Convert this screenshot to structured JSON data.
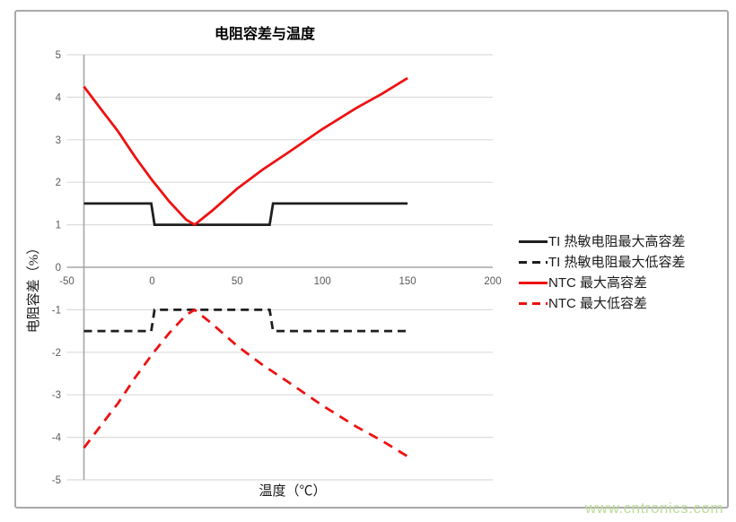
{
  "watermark": "www.cntronics.com",
  "colors": {
    "grid": "#dcdcdc",
    "axis": "#a6a6a6",
    "tick_label": "#595959",
    "series_black": "#1f1f1f",
    "series_red": "#ee1111",
    "watermark": "#bfdb9b",
    "frame_border": "#a9a9a9"
  },
  "chart_data": {
    "type": "line",
    "title": "电阻容差与温度",
    "xlabel": "温度（℃）",
    "ylabel": "电阻容差（%）",
    "xlim": [
      -50,
      200
    ],
    "ylim": [
      -5,
      5
    ],
    "x_ticks": [
      -50,
      0,
      50,
      100,
      150,
      200
    ],
    "y_ticks": [
      5,
      4,
      3,
      2,
      1,
      0,
      -1,
      -2,
      -3,
      -4,
      -5
    ],
    "grid": true,
    "legend_position": "right",
    "y_axis_crosses_at": -40,
    "series": [
      {
        "name": "TI 热敏电阻最大高容差",
        "color": "#1f1f1f",
        "style": "solid",
        "points": [
          [
            -40,
            1.5
          ],
          [
            -0.5,
            1.5
          ],
          [
            1.5,
            1.0
          ],
          [
            69,
            1.0
          ],
          [
            71,
            1.5
          ],
          [
            150,
            1.5
          ]
        ]
      },
      {
        "name": "TI 热敏电阻最大低容差",
        "color": "#1f1f1f",
        "style": "dashed",
        "points": [
          [
            -40,
            -1.5
          ],
          [
            -0.5,
            -1.5
          ],
          [
            1.5,
            -1.0
          ],
          [
            69,
            -1.0
          ],
          [
            71,
            -1.5
          ],
          [
            150,
            -1.5
          ]
        ]
      },
      {
        "name": "NTC 最大高容差",
        "color": "#ee1111",
        "style": "solid",
        "points": [
          [
            -40,
            4.25
          ],
          [
            -30,
            3.72
          ],
          [
            -20,
            3.2
          ],
          [
            -10,
            2.6
          ],
          [
            0,
            2.05
          ],
          [
            10,
            1.55
          ],
          [
            20,
            1.12
          ],
          [
            25,
            1.0
          ],
          [
            35,
            1.32
          ],
          [
            50,
            1.85
          ],
          [
            65,
            2.3
          ],
          [
            80,
            2.7
          ],
          [
            100,
            3.25
          ],
          [
            120,
            3.75
          ],
          [
            135,
            4.08
          ],
          [
            150,
            4.45
          ]
        ]
      },
      {
        "name": "NTC 最大低容差",
        "color": "#ee1111",
        "style": "dashed",
        "points": [
          [
            -40,
            -4.25
          ],
          [
            -30,
            -3.72
          ],
          [
            -20,
            -3.2
          ],
          [
            -10,
            -2.6
          ],
          [
            0,
            -2.05
          ],
          [
            10,
            -1.55
          ],
          [
            20,
            -1.12
          ],
          [
            25,
            -1.0
          ],
          [
            35,
            -1.32
          ],
          [
            50,
            -1.85
          ],
          [
            65,
            -2.3
          ],
          [
            80,
            -2.7
          ],
          [
            100,
            -3.25
          ],
          [
            120,
            -3.75
          ],
          [
            135,
            -4.08
          ],
          [
            150,
            -4.45
          ]
        ]
      }
    ]
  }
}
